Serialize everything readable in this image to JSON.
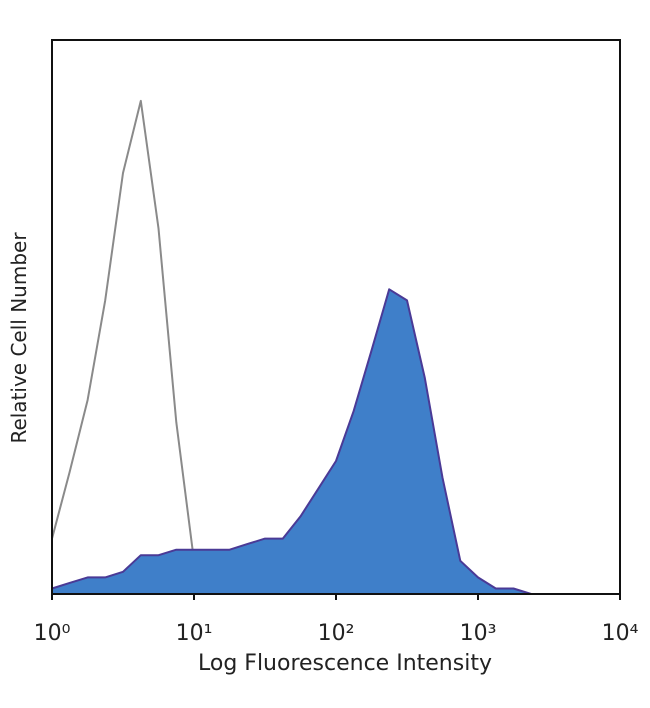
{
  "chart_data": {
    "type": "line",
    "x_label": "Log Fluorescence Intensity",
    "y_label": "Relative Cell Number",
    "log_x": true,
    "xlim": [
      1,
      10000
    ],
    "xticks": [
      {
        "value": 1,
        "label": "10⁰"
      },
      {
        "value": 10,
        "label": "10¹"
      },
      {
        "value": 100,
        "label": "10²"
      },
      {
        "value": 1000,
        "label": "10³"
      },
      {
        "value": 10000,
        "label": "10⁴"
      }
    ],
    "ylim": [
      0,
      100
    ],
    "x": [
      1,
      1.33,
      1.78,
      2.37,
      3.16,
      4.22,
      5.62,
      7.5,
      10,
      13.3,
      17.8,
      23.7,
      31.6,
      42.2,
      56.2,
      75,
      100,
      133,
      178,
      237,
      316,
      422,
      562,
      750,
      1000,
      1334,
      1778,
      2371,
      3162,
      4217,
      5623,
      7499,
      10000
    ],
    "series": [
      {
        "color": "#8a8a8a",
        "filled": false,
        "values": [
          10,
          22,
          35,
          53,
          76,
          89,
          66,
          31,
          6,
          1,
          0,
          0,
          0,
          0,
          0,
          0,
          0,
          0,
          0,
          0,
          0,
          0,
          0,
          0,
          0,
          0,
          0,
          0,
          0,
          0,
          0,
          0,
          0
        ]
      },
      {
        "color": "#3f7fc9",
        "stroke": "#4a3a96",
        "filled": true,
        "values": [
          1,
          2,
          3,
          3,
          4,
          7,
          7,
          8,
          8,
          8,
          8,
          9,
          10,
          10,
          14,
          19,
          24,
          33,
          44,
          55,
          53,
          39,
          21,
          6,
          3,
          1,
          1,
          0,
          0,
          0,
          0,
          0,
          0
        ]
      }
    ]
  }
}
